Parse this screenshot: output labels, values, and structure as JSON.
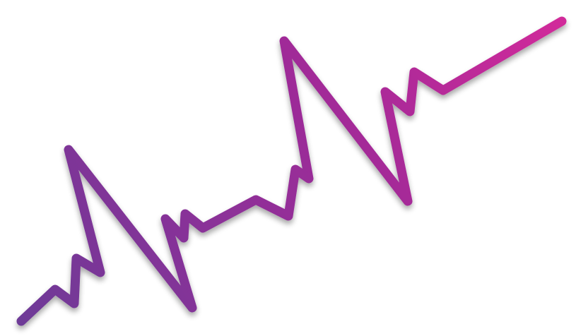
{
  "graphic": {
    "icon": "heartbeat-pulse-line-icon",
    "stroke_gradient": {
      "start": "#6E3A97",
      "mid": "#9B2C98",
      "end": "#D12A9A"
    },
    "shadow_color": "#5a2a7a"
  }
}
